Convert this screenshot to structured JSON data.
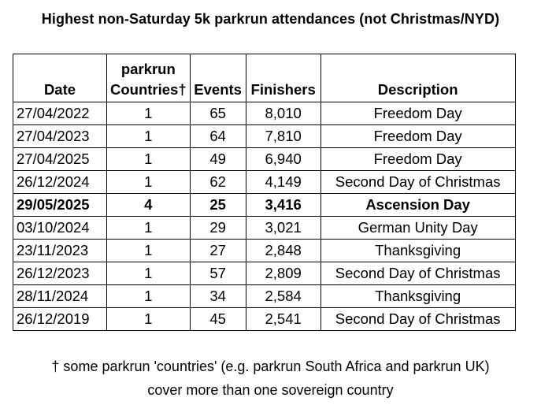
{
  "title": "Highest non-Saturday 5k parkrun attendances (not Christmas/NYD)",
  "table": {
    "headers": {
      "date": "Date",
      "countries_line1": "parkrun",
      "countries_line2": "Countries†",
      "events": "Events",
      "finishers": "Finishers",
      "description": "Description"
    },
    "rows": [
      {
        "date": "27/04/2022",
        "countries": "1",
        "events": "65",
        "finishers": "8,010",
        "description": "Freedom Day",
        "bold": false
      },
      {
        "date": "27/04/2023",
        "countries": "1",
        "events": "64",
        "finishers": "7,810",
        "description": "Freedom Day",
        "bold": false
      },
      {
        "date": "27/04/2025",
        "countries": "1",
        "events": "49",
        "finishers": "6,940",
        "description": "Freedom Day",
        "bold": false
      },
      {
        "date": "26/12/2024",
        "countries": "1",
        "events": "62",
        "finishers": "4,149",
        "description": "Second Day of Christmas",
        "bold": false
      },
      {
        "date": "29/05/2025",
        "countries": "4",
        "events": "25",
        "finishers": "3,416",
        "description": "Ascension Day",
        "bold": true
      },
      {
        "date": "03/10/2024",
        "countries": "1",
        "events": "29",
        "finishers": "3,021",
        "description": "German Unity Day",
        "bold": false
      },
      {
        "date": "23/11/2023",
        "countries": "1",
        "events": "27",
        "finishers": "2,848",
        "description": "Thanksgiving",
        "bold": false
      },
      {
        "date": "26/12/2023",
        "countries": "1",
        "events": "57",
        "finishers": "2,809",
        "description": "Second Day of Christmas",
        "bold": false
      },
      {
        "date": "28/11/2024",
        "countries": "1",
        "events": "34",
        "finishers": "2,584",
        "description": "Thanksgiving",
        "bold": false
      },
      {
        "date": "26/12/2019",
        "countries": "1",
        "events": "45",
        "finishers": "2,541",
        "description": "Second Day of Christmas",
        "bold": false
      }
    ]
  },
  "footnote": {
    "line1": "† some parkrun 'countries' (e.g. parkrun South Africa and parkrun UK)",
    "line2": "cover more than one sovereign country"
  }
}
